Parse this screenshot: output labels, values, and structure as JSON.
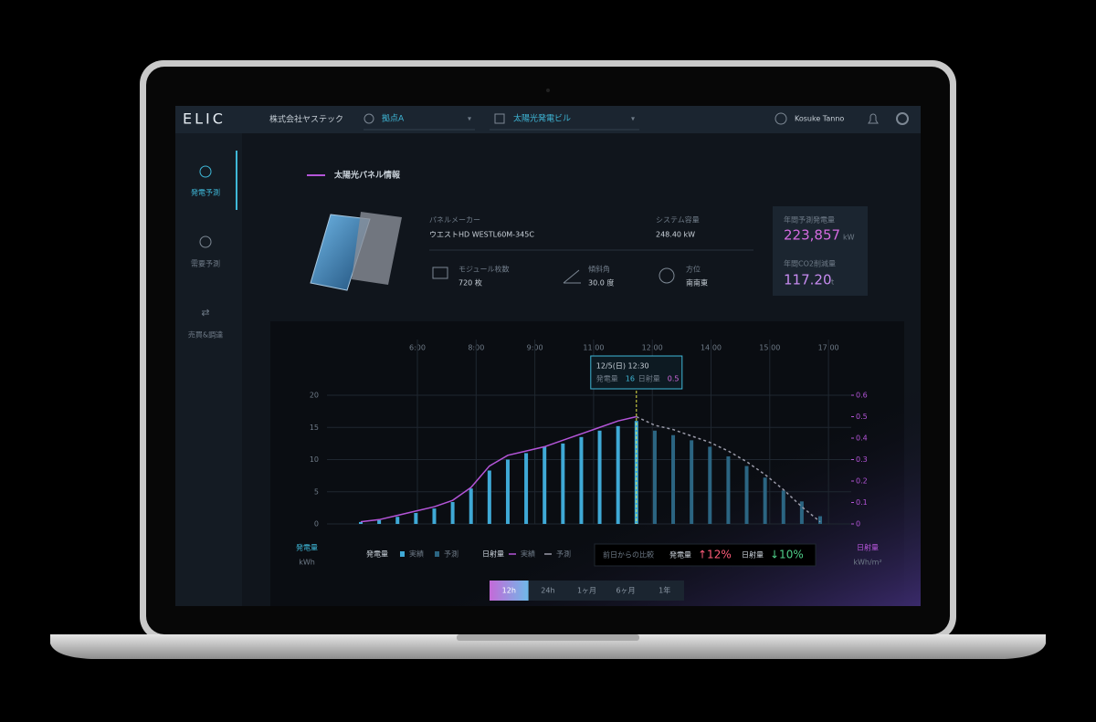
{
  "header": {
    "logo": "ELIC",
    "company": "株式会社ヤステック",
    "site": "拠点A",
    "building": "太陽光発電ビル",
    "user": "Kosuke Tanno"
  },
  "sidebar": {
    "items": [
      "発電予測",
      "需要予測",
      "売買&調達"
    ]
  },
  "panel": {
    "title": "太陽光パネル情報",
    "maker_label": "パネルメーカー",
    "maker": "ウエストHD WESTL60M-345C",
    "capacity_label": "システム容量",
    "capacity": "248.40 kW",
    "modules_label": "モジュール枚数",
    "modules": "720 枚",
    "tilt_label": "傾斜角",
    "tilt": "30.0 度",
    "azimuth_label": "方位",
    "azimuth": "南南東"
  },
  "summary": {
    "generation_label": "年間予測発電量",
    "generation": "223,857",
    "generation_unit": "kW",
    "co2_label": "年間CO2削減量",
    "co2": "117.20",
    "co2_unit": "t"
  },
  "chart": {
    "type": "bar_line",
    "time_labels": [
      "6:00",
      "8:00",
      "9:00",
      "11:00",
      "12:00",
      "14:00",
      "15:00",
      "17:00"
    ],
    "ylim": [
      0,
      20
    ],
    "yticks": [
      0,
      5,
      10,
      15,
      20
    ],
    "y_label": "発電量",
    "y_unit": "kWh",
    "y2lim": [
      0,
      0.6
    ],
    "y2ticks": [
      0,
      0.1,
      0.2,
      0.3,
      0.4,
      0.5,
      0.6
    ],
    "y2_label": "日射量",
    "y2_unit": "kWh/m²",
    "legend_groups": [
      "発電量",
      "日射量"
    ],
    "series": [
      {
        "name": "実績",
        "color": "#3fa9d6",
        "values": [
          0.3,
          0.6,
          1.1,
          1.7,
          2.4,
          3.4,
          5.5,
          8.3,
          10,
          11,
          12,
          12.5,
          13.5,
          14.5,
          15.2,
          16,
          null,
          null,
          null,
          null,
          null,
          null,
          null,
          null,
          null,
          null
        ]
      },
      {
        "name": "予測",
        "color": "#2b6582",
        "values": [
          null,
          null,
          null,
          null,
          null,
          null,
          null,
          null,
          null,
          null,
          null,
          null,
          null,
          null,
          null,
          null,
          14.5,
          13.8,
          13,
          12,
          10.5,
          9,
          7.2,
          5.2,
          3.5,
          1.2
        ]
      },
      {
        "name": "実績",
        "color": "#b455d8",
        "axis": "y2",
        "values": [
          0.01,
          0.02,
          0.04,
          0.06,
          0.08,
          0.11,
          0.17,
          0.27,
          0.32,
          0.34,
          0.36,
          0.39,
          0.42,
          0.45,
          0.48,
          0.5,
          null,
          null,
          null,
          null,
          null,
          null,
          null,
          null,
          null,
          null
        ]
      },
      {
        "name": "予測",
        "color": "#9a9aa8",
        "axis": "y2",
        "dashed": true,
        "values": [
          null,
          null,
          null,
          null,
          null,
          null,
          null,
          null,
          null,
          null,
          null,
          null,
          null,
          null,
          null,
          0.5,
          0.46,
          0.44,
          0.41,
          0.38,
          0.34,
          0.29,
          0.23,
          0.16,
          0.08,
          0.01
        ]
      }
    ],
    "tooltip": {
      "date": "12/5(日) 12:30",
      "generation_label": "発電量",
      "radiation_label": "日射量"
    },
    "comparison": {
      "title": "前日からの比較",
      "generation_label": "発電量",
      "generation": "↑12%",
      "radiation_label": "日射量",
      "radiation": "↓10%"
    },
    "ranges": [
      "12h",
      "24h",
      "1ヶ月",
      "6ヶ月",
      "1年"
    ]
  }
}
